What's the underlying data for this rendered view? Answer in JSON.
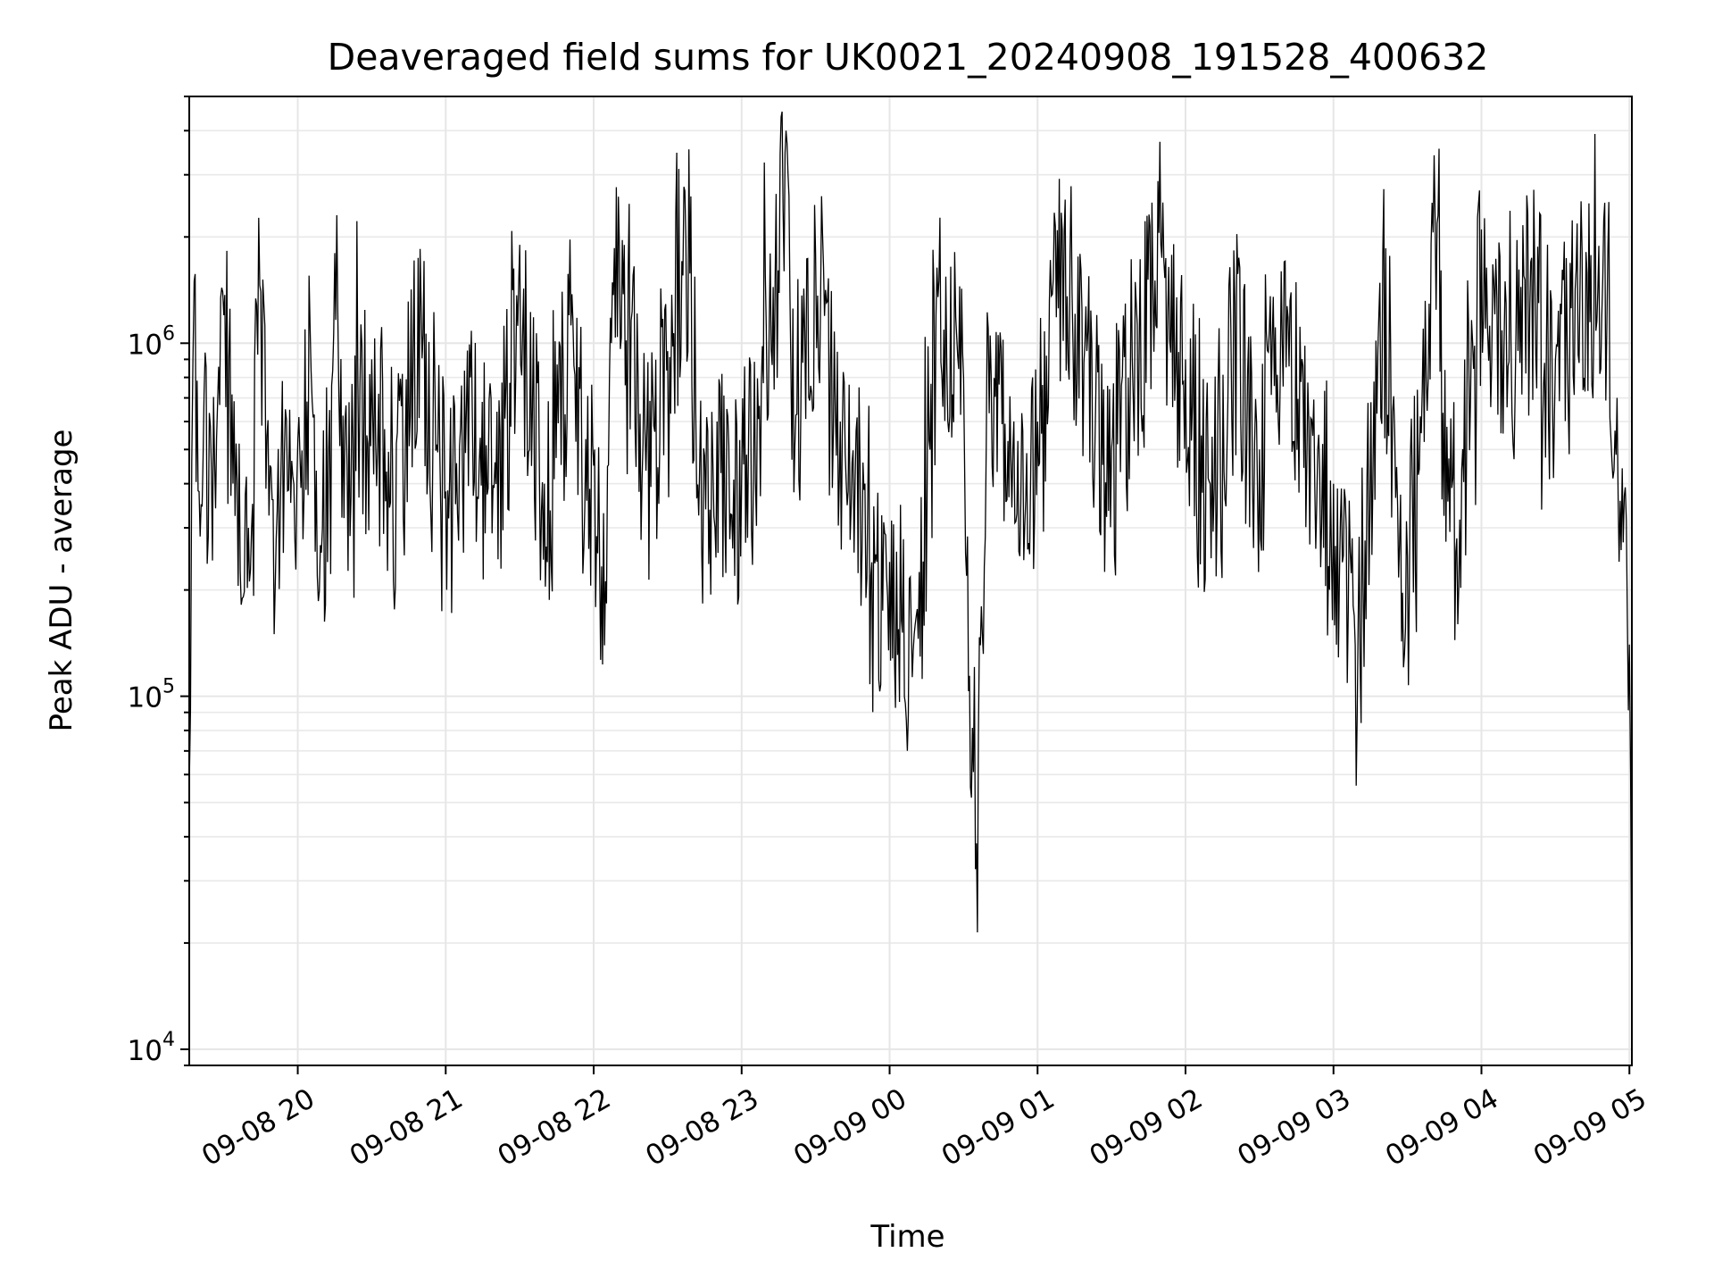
{
  "chart_data": {
    "type": "line",
    "title": "Deaveraged field sums for UK0021_20240908_191528_400632",
    "xlabel": "Time",
    "ylabel": "Peak ADU - average",
    "yscale": "log",
    "ylim": [
      9000,
      5000000
    ],
    "xlim": [
      "2024-09-08 19:16",
      "2024-09-09 05:01"
    ],
    "grid": true,
    "line_color": "#000000",
    "x_ticks": [
      {
        "label": "09-08 20",
        "time": "2024-09-08 20:00"
      },
      {
        "label": "09-08 21",
        "time": "2024-09-08 21:00"
      },
      {
        "label": "09-08 22",
        "time": "2024-09-08 22:00"
      },
      {
        "label": "09-08 23",
        "time": "2024-09-08 23:00"
      },
      {
        "label": "09-09 00",
        "time": "2024-09-09 00:00"
      },
      {
        "label": "09-09 01",
        "time": "2024-09-09 01:00"
      },
      {
        "label": "09-09 02",
        "time": "2024-09-09 02:00"
      },
      {
        "label": "09-09 03",
        "time": "2024-09-09 03:00"
      },
      {
        "label": "09-09 04",
        "time": "2024-09-09 04:00"
      },
      {
        "label": "09-09 05",
        "time": "2024-09-09 05:00"
      }
    ],
    "y_ticks": [
      {
        "base": "10",
        "exp": "4",
        "value": 10000
      },
      {
        "base": "10",
        "exp": "5",
        "value": 100000
      },
      {
        "base": "10",
        "exp": "6",
        "value": 1000000
      }
    ],
    "series": [
      {
        "color": "#000000",
        "x": [
          "2024-09-08 19:16",
          "2024-09-08 19:17",
          "2024-09-08 19:18",
          "2024-09-08 19:20",
          "2024-09-08 19:22",
          "2024-09-08 19:25",
          "2024-09-08 19:30",
          "2024-09-08 19:35",
          "2024-09-08 19:40",
          "2024-09-08 19:45",
          "2024-09-08 19:50",
          "2024-09-08 19:55",
          "2024-09-08 19:58",
          "2024-09-08 20:05",
          "2024-09-08 20:10",
          "2024-09-08 20:15",
          "2024-09-08 20:20",
          "2024-09-08 20:30",
          "2024-09-08 20:40",
          "2024-09-08 20:50",
          "2024-09-08 21:00",
          "2024-09-08 21:10",
          "2024-09-08 21:20",
          "2024-09-08 21:30",
          "2024-09-08 21:40",
          "2024-09-08 21:50",
          "2024-09-08 22:00",
          "2024-09-08 22:04",
          "2024-09-08 22:10",
          "2024-09-08 22:20",
          "2024-09-08 22:30",
          "2024-09-08 22:37",
          "2024-09-08 22:45",
          "2024-09-08 22:50",
          "2024-09-08 23:00",
          "2024-09-08 23:10",
          "2024-09-08 23:18",
          "2024-09-08 23:20",
          "2024-09-08 23:30",
          "2024-09-08 23:40",
          "2024-09-08 23:50",
          "2024-09-09 00:00",
          "2024-09-09 00:10",
          "2024-09-09 00:20",
          "2024-09-09 00:30",
          "2024-09-09 00:34",
          "2024-09-09 00:40",
          "2024-09-09 00:50",
          "2024-09-09 01:00",
          "2024-09-09 01:10",
          "2024-09-09 01:20",
          "2024-09-09 01:30",
          "2024-09-09 01:40",
          "2024-09-09 01:50",
          "2024-09-09 02:00",
          "2024-09-09 02:10",
          "2024-09-09 02:20",
          "2024-09-09 02:30",
          "2024-09-09 02:40",
          "2024-09-09 02:50",
          "2024-09-09 03:00",
          "2024-09-09 03:10",
          "2024-09-09 03:20",
          "2024-09-09 03:30",
          "2024-09-09 03:40",
          "2024-09-09 03:50",
          "2024-09-09 04:00",
          "2024-09-09 04:05",
          "2024-09-09 04:10",
          "2024-09-09 04:20",
          "2024-09-09 04:30",
          "2024-09-09 04:40",
          "2024-09-09 04:50",
          "2024-09-09 04:55",
          "2024-09-09 05:00",
          "2024-09-09 05:01"
        ],
        "y": [
          55000,
          460000,
          1500000,
          380000,
          720000,
          430000,
          1200000,
          520000,
          300000,
          1400000,
          360000,
          650000,
          420000,
          1100000,
          300000,
          1800000,
          450000,
          900000,
          520000,
          1300000,
          380000,
          800000,
          460000,
          1900000,
          400000,
          1200000,
          450000,
          330000,
          2600000,
          520000,
          950000,
          2700000,
          480000,
          600000,
          420000,
          1100000,
          4000000,
          850000,
          1800000,
          600000,
          400000,
          240000,
          150000,
          1500000,
          800000,
          61000,
          1100000,
          500000,
          600000,
          2100000,
          950000,
          500000,
          1300000,
          1900000,
          900000,
          400000,
          1300000,
          500000,
          1700000,
          600000,
          400000,
          160000,
          1800000,
          250000,
          2500000,
          280000,
          2100000,
          1500000,
          1300000,
          1700000,
          900000,
          1500000,
          2500000,
          700000,
          140000,
          12000
        ]
      }
    ]
  }
}
